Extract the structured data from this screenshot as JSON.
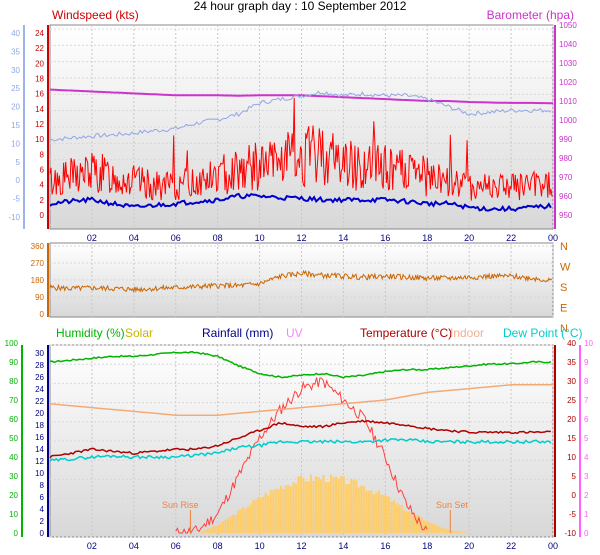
{
  "title": "24 hour graph day : 10 September 2012",
  "chart_data": [
    {
      "type": "line",
      "panel": "wind-baro",
      "labels": {
        "left": "Windspeed (kts)",
        "right": "Barometer (hpa)"
      },
      "x_ticks": [
        "02",
        "04",
        "06",
        "08",
        "10",
        "12",
        "14",
        "16",
        "18",
        "20",
        "22",
        "00"
      ],
      "axes": {
        "windspeed": {
          "ticks": [
            "24",
            "22",
            "20",
            "18",
            "16",
            "14",
            "12",
            "10",
            "8",
            "6",
            "4",
            "2",
            "0"
          ],
          "ylim": [
            0,
            25
          ]
        },
        "outer_left": {
          "ticks": [
            "40",
            "35",
            "30",
            "25",
            "20",
            "15",
            "10",
            "5",
            "0",
            "-5",
            "-10"
          ],
          "ylim": [
            -10,
            42
          ]
        },
        "barometer": {
          "ticks": [
            "1050",
            "1040",
            "1030",
            "1020",
            "1010",
            "1000",
            "990",
            "980",
            "970",
            "960",
            "950"
          ],
          "ylim": [
            947,
            1053
          ]
        }
      },
      "series": [
        {
          "color": "#cc33cc",
          "x": [
            0,
            1,
            2,
            3,
            4,
            5,
            6,
            7,
            8,
            9,
            10,
            11,
            12,
            13,
            14,
            15,
            16,
            17,
            18,
            19,
            20,
            21,
            22,
            23,
            24
          ],
          "values": [
            1016,
            1015.5,
            1015,
            1014.5,
            1014,
            1013.5,
            1013,
            1013,
            1013,
            1012.8,
            1013,
            1013,
            1013,
            1012.5,
            1012,
            1011.5,
            1011,
            1010.5,
            1010,
            1010,
            1009.5,
            1009.2,
            1009,
            1009,
            1008.8
          ]
        },
        {
          "color": "#8fa6e8",
          "x": [
            0,
            1,
            2,
            3,
            4,
            5,
            6,
            7,
            8,
            9,
            10,
            11,
            12,
            13,
            14,
            15,
            16,
            17,
            18,
            19,
            20,
            21,
            22,
            23,
            24
          ],
          "values": [
            11,
            11.5,
            12,
            12.3,
            12.8,
            13.5,
            14,
            15.5,
            16.5,
            18,
            21,
            22,
            23,
            24,
            23,
            23.5,
            23,
            23,
            22,
            20,
            18,
            18.5,
            19,
            19,
            19
          ]
        },
        {
          "color": "#ff0000",
          "x": [
            0,
            1,
            2,
            3,
            4,
            5,
            6,
            7,
            8,
            9,
            10,
            11,
            12,
            13,
            14,
            15,
            16,
            17,
            18,
            19,
            20,
            21,
            22,
            23,
            24
          ],
          "values": [
            3.5,
            4,
            4.5,
            4,
            3.5,
            3,
            3,
            3.5,
            4,
            5,
            5,
            5.5,
            6,
            6.5,
            5.5,
            5,
            5,
            4.5,
            4,
            3.5,
            3,
            3,
            3,
            3,
            3
          ]
        },
        {
          "color": "#0000cc",
          "x": [
            0,
            1,
            2,
            3,
            4,
            5,
            6,
            7,
            8,
            9,
            10,
            11,
            12,
            13,
            14,
            15,
            16,
            17,
            18,
            19,
            20,
            21,
            22,
            23,
            24
          ],
          "values": [
            1.5,
            1.8,
            2,
            1.5,
            1,
            1.3,
            1.5,
            1.8,
            2,
            2.5,
            2.5,
            2.3,
            2.2,
            2,
            2,
            2,
            2,
            1.8,
            1.5,
            1.5,
            1,
            0.8,
            0.8,
            1,
            1.2
          ]
        }
      ]
    },
    {
      "type": "line",
      "panel": "wind-direction",
      "y_ticks": [
        "360",
        "270",
        "180",
        "90",
        "0"
      ],
      "ylim": [
        0,
        360
      ],
      "compass": [
        "N",
        "W",
        "S",
        "E",
        "N"
      ],
      "series": [
        {
          "color": "#cc6600",
          "x": [
            0,
            1,
            2,
            3,
            4,
            5,
            6,
            7,
            8,
            9,
            10,
            11,
            12,
            13,
            14,
            15,
            16,
            17,
            18,
            19,
            20,
            21,
            22,
            23,
            24
          ],
          "values": [
            140,
            135,
            138,
            135,
            130,
            135,
            140,
            145,
            150,
            150,
            160,
            200,
            215,
            205,
            200,
            195,
            200,
            195,
            190,
            190,
            195,
            200,
            200,
            190,
            175
          ]
        }
      ]
    },
    {
      "type": "line",
      "panel": "temp-hum",
      "labels": {
        "humidity": "Humidity (%)",
        "solar": "Solar",
        "rainfall": "Rainfall (mm)",
        "uv": "UV",
        "temperature": "Temperature (°C)",
        "indoor": "Indoor",
        "dewpoint": "Dew Point (°C)",
        "sunrise": "Sun Rise",
        "sunset": "Sun Set"
      },
      "axes": {
        "humidity": {
          "ticks": [
            "100",
            "90",
            "80",
            "70",
            "60",
            "50",
            "40",
            "30",
            "20",
            "10",
            "0"
          ],
          "ylim": [
            0,
            100
          ]
        },
        "rainfall": {
          "ticks": [
            "30",
            "28",
            "26",
            "24",
            "22",
            "20",
            "18",
            "16",
            "14",
            "12",
            "10",
            "8",
            "6",
            "4",
            "2",
            "0"
          ],
          "ylim": [
            0,
            30
          ]
        },
        "temperature": {
          "ticks": [
            "40",
            "35",
            "30",
            "25",
            "20",
            "15",
            "10",
            "5",
            "0",
            "-5",
            "-10"
          ],
          "ylim": [
            -10,
            40
          ]
        },
        "uv": {
          "ticks": [
            "10",
            "9",
            "8",
            "7",
            "6",
            "5",
            "4",
            "3",
            "2",
            "1",
            "0"
          ],
          "ylim": [
            0,
            10
          ]
        }
      },
      "series": [
        {
          "color": "#00b400",
          "axis": "humidity",
          "x": [
            0,
            1,
            2,
            3,
            4,
            5,
            6,
            7,
            8,
            9,
            10,
            11,
            12,
            13,
            14,
            15,
            16,
            17,
            18,
            19,
            20,
            21,
            22,
            23,
            24
          ],
          "values": [
            90,
            91,
            92,
            93,
            93,
            94,
            95,
            95,
            93,
            88,
            84,
            82,
            83,
            84,
            82,
            83,
            85,
            86,
            86,
            87,
            88,
            89,
            89,
            90,
            90
          ]
        },
        {
          "color": "#ff4040",
          "axis": "uv",
          "x": [
            6,
            7,
            8,
            9,
            10,
            11,
            12,
            13,
            14,
            15,
            16,
            17,
            18
          ],
          "values": [
            0,
            0.1,
            1,
            3,
            5,
            6.5,
            7.6,
            8,
            7,
            6,
            4,
            1.5,
            0
          ]
        },
        {
          "color": "#f4aa77",
          "axis": "temperature",
          "x": [
            0,
            2,
            4,
            6,
            8,
            10,
            12,
            14,
            16,
            18,
            20,
            22,
            24
          ],
          "values": [
            24,
            23,
            22,
            21,
            21,
            22,
            23,
            24,
            25,
            27,
            28,
            29,
            29
          ]
        },
        {
          "color": "#b00000",
          "axis": "temperature",
          "x": [
            0,
            1,
            2,
            3,
            4,
            5,
            6,
            7,
            8,
            9,
            10,
            11,
            12,
            13,
            14,
            15,
            16,
            17,
            18,
            19,
            20,
            21,
            22,
            23,
            24
          ],
          "values": [
            10,
            11,
            12,
            11.5,
            11,
            11.5,
            12,
            12,
            13,
            15,
            17,
            19,
            18,
            18,
            19,
            19.5,
            19,
            18.5,
            17.5,
            17,
            16.5,
            16.5,
            16.5,
            16.5,
            16.5
          ]
        },
        {
          "color": "#00cccc",
          "axis": "temperature",
          "x": [
            0,
            1,
            2,
            3,
            4,
            5,
            6,
            7,
            8,
            9,
            10,
            11,
            12,
            13,
            14,
            15,
            16,
            17,
            18,
            19,
            20,
            21,
            22,
            23,
            24
          ],
          "values": [
            9,
            9.5,
            10,
            10.3,
            10,
            10,
            10,
            10.5,
            11,
            12.5,
            13,
            14,
            14,
            14,
            14,
            14,
            14.5,
            14.5,
            14,
            14,
            14,
            14,
            14,
            14,
            14
          ]
        },
        {
          "color": "#ffcc66",
          "axis": "rainfall",
          "x": [
            7,
            8,
            9,
            10,
            11,
            12,
            13,
            14,
            15,
            16,
            17,
            18,
            19,
            20
          ],
          "values": [
            0,
            1.5,
            4,
            6.5,
            8.5,
            9.8,
            10,
            9.5,
            8.3,
            6.5,
            4,
            2,
            0.5,
            0
          ]
        }
      ]
    }
  ]
}
